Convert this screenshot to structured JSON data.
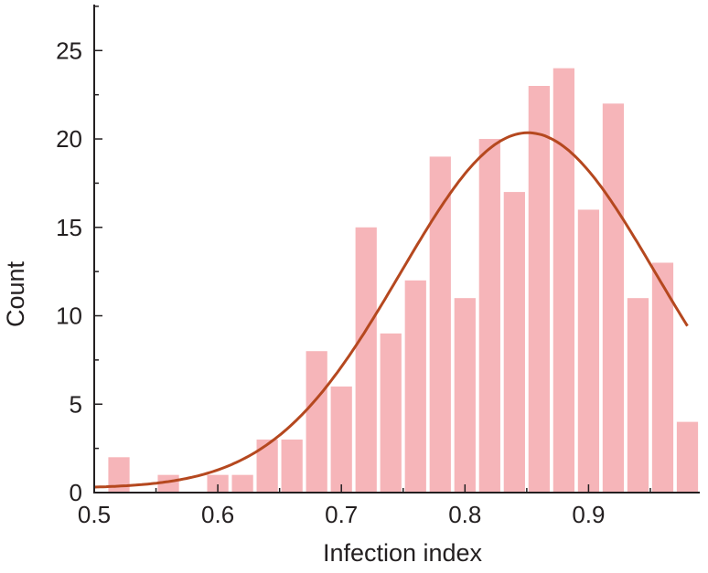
{
  "chart_data": {
    "type": "bar",
    "title": "",
    "xlabel": "Infection index",
    "ylabel": "Count",
    "xlim": [
      0.5,
      0.99
    ],
    "ylim": [
      0,
      27.6
    ],
    "bin_width": 0.02,
    "x": [
      0.52,
      0.54,
      0.56,
      0.58,
      0.6,
      0.62,
      0.64,
      0.66,
      0.68,
      0.7,
      0.72,
      0.74,
      0.76,
      0.78,
      0.8,
      0.82,
      0.84,
      0.86,
      0.88,
      0.9,
      0.92,
      0.94,
      0.96,
      0.98
    ],
    "values": [
      2,
      0,
      1,
      0,
      1,
      1,
      3,
      3,
      8,
      6,
      15,
      9,
      12,
      19,
      11,
      20,
      17,
      23,
      24,
      16,
      22,
      11,
      13,
      4
    ],
    "xticks": [
      0.5,
      0.6,
      0.7,
      0.8,
      0.9
    ],
    "xtick_labels": [
      "0.5",
      "0.6",
      "0.7",
      "0.8",
      "0.9"
    ],
    "yticks": [
      0,
      5,
      10,
      15,
      20,
      25
    ],
    "ytick_labels": [
      "0",
      "5",
      "10",
      "15",
      "20",
      "25"
    ],
    "fit_curve": {
      "type": "gaussian",
      "mean": 0.851,
      "sigma": 0.103,
      "amplitude": 20.1,
      "offset": 0.25
    },
    "grid": false,
    "colors": {
      "bar": "#f6b5b9",
      "curve": "#b5481f",
      "axis": "#231f20"
    }
  }
}
